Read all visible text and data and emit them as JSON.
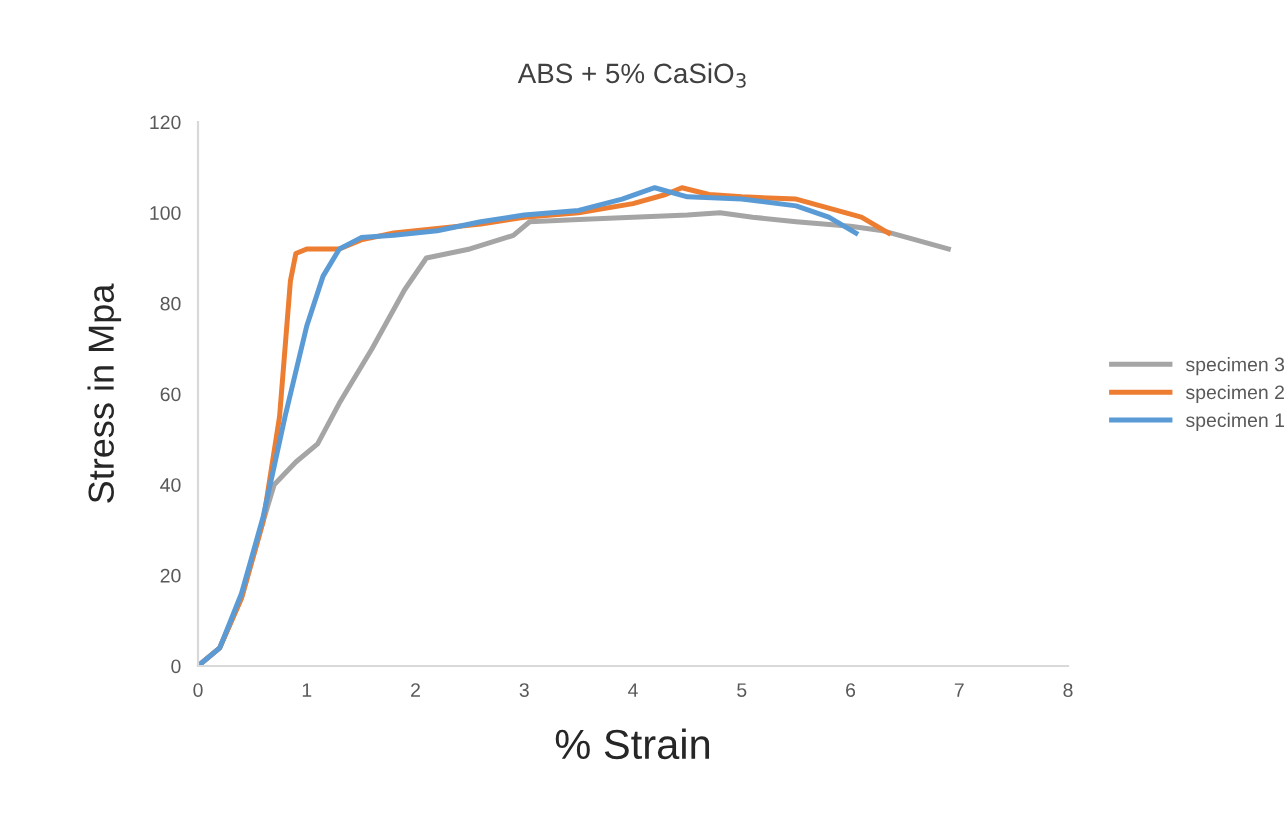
{
  "chart_data": {
    "type": "line",
    "title": "ABS + 5% CaSiO$_{3}$",
    "xlabel": "% Strain",
    "ylabel": "Stress in Mpa",
    "xlim": [
      0,
      8
    ],
    "xticks": [
      0,
      1,
      2,
      3,
      4,
      5,
      6,
      7,
      8
    ],
    "ylim": [
      0,
      120
    ],
    "yticks": [
      0,
      20,
      40,
      60,
      80,
      100,
      120
    ],
    "grid": false,
    "legend": "right",
    "marker": "none",
    "line_style": "solid",
    "series": [
      {
        "name": "specimen 3",
        "color": "#a5a5a5",
        "x": [
          0,
          0.2,
          0.4,
          0.6,
          0.7,
          0.9,
          1.1,
          1.3,
          1.6,
          1.9,
          2.1,
          2.3,
          2.5,
          2.7,
          2.9,
          3.05,
          3.5,
          4,
          4.5,
          4.8,
          5.1,
          5.5,
          6,
          6.3,
          6.6,
          6.9
        ],
        "values": [
          0,
          4,
          15,
          32,
          40,
          45,
          49,
          58,
          70,
          83,
          90,
          91,
          92,
          93.5,
          95,
          98,
          98.5,
          99,
          99.5,
          100,
          99,
          98,
          97,
          96,
          94,
          92
        ]
      },
      {
        "name": "specimen 2",
        "color": "#ed7d31",
        "x": [
          0,
          0.2,
          0.4,
          0.6,
          0.75,
          0.85,
          0.9,
          1.0,
          1.3,
          1.5,
          1.8,
          2.6,
          3,
          3.5,
          4,
          4.3,
          4.45,
          4.7,
          5,
          5.5,
          5.8,
          6.1,
          6.35
        ],
        "values": [
          0,
          4,
          15,
          32,
          55,
          85,
          91,
          92,
          92,
          94,
          95.5,
          97.5,
          99,
          100,
          102,
          104,
          105.5,
          104,
          103.5,
          103,
          101,
          99,
          95.5
        ]
      },
      {
        "name": "specimen 1",
        "color": "#5b9bd5",
        "x": [
          0,
          0.2,
          0.4,
          0.6,
          0.8,
          1.0,
          1.15,
          1.3,
          1.5,
          1.8,
          2.2,
          2.6,
          3,
          3.5,
          3.9,
          4.2,
          4.5,
          5,
          5.5,
          5.8,
          6.05
        ],
        "values": [
          0,
          4,
          16,
          33,
          55,
          75,
          86,
          92,
          94.5,
          95,
          96,
          98,
          99.5,
          100.5,
          103,
          105.5,
          103.5,
          103,
          101.5,
          99,
          95.5
        ]
      }
    ]
  }
}
